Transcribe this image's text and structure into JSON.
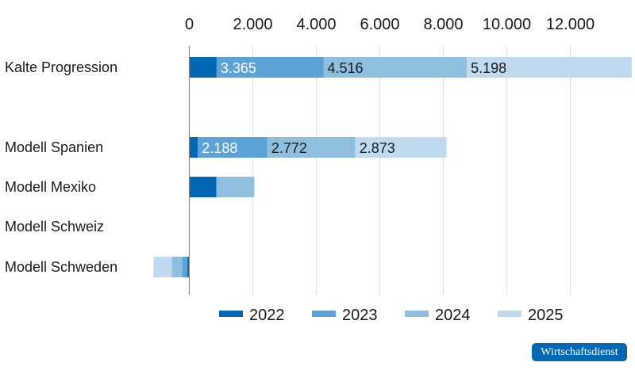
{
  "chart_data": {
    "type": "bar",
    "orientation": "horizontal",
    "stacked": true,
    "title": "",
    "xlim": [
      -1200,
      14000
    ],
    "xticks": [
      0,
      2000,
      4000,
      6000,
      8000,
      10000,
      12000
    ],
    "xtick_labels": [
      "0",
      "2.000",
      "4.000",
      "6.000",
      "8.000",
      "10.000",
      "12.000"
    ],
    "categories": [
      "Kalte Progression",
      "Modell Spanien",
      "Modell Mexiko",
      "Modell Schweiz",
      "Modell Schweden"
    ],
    "series": [
      {
        "name": "2022",
        "color": "#0068b4",
        "values": [
          860,
          270,
          850,
          0,
          -60
        ],
        "labels": [
          "",
          "",
          "",
          "",
          ""
        ]
      },
      {
        "name": "2023",
        "color": "#5ba2d6",
        "values": [
          3365,
          2188,
          0,
          0,
          -170
        ],
        "labels": [
          "3.365",
          "2.188",
          "",
          "",
          ""
        ]
      },
      {
        "name": "2024",
        "color": "#8fbfe0",
        "values": [
          4516,
          2772,
          1200,
          0,
          -320
        ],
        "labels": [
          "4.516",
          "2.772",
          "",
          "",
          ""
        ]
      },
      {
        "name": "2025",
        "color": "#c0dbef",
        "values": [
          5198,
          2873,
          0,
          0,
          -580
        ],
        "labels": [
          "5.198",
          "2.873",
          "",
          "",
          ""
        ]
      }
    ],
    "grid": true,
    "legend": "bottom"
  },
  "source_badge": "Wirtschaftsdienst"
}
